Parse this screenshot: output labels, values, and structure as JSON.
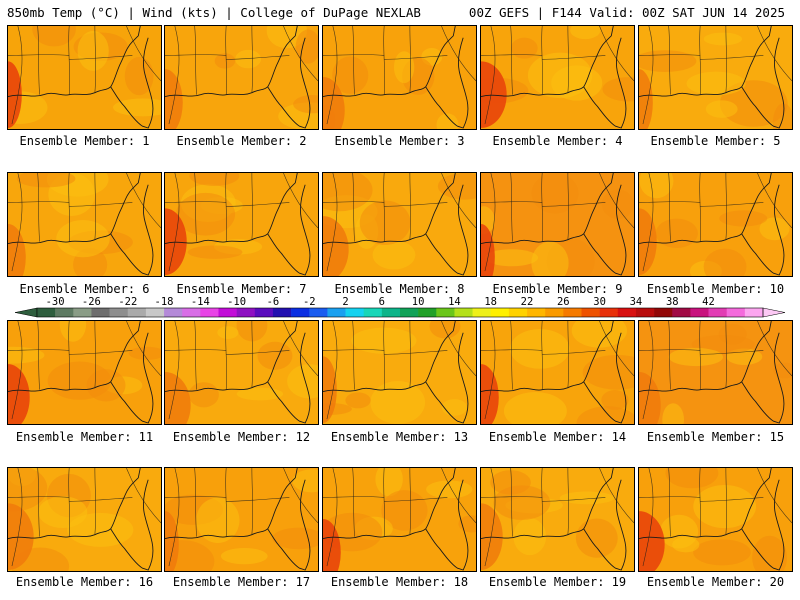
{
  "header": {
    "left_title": "850mb Temp (°C) | Wind (kts) | College of DuPage NEXLAB",
    "right_title": "00Z GEFS | F144 Valid: 00Z SAT JUN 14 2025"
  },
  "panel_label_prefix": "Ensemble Member: ",
  "members": [
    {
      "label": "Ensemble Member: 1",
      "base": "#f7a40a",
      "hot": "#e8400b"
    },
    {
      "label": "Ensemble Member: 2",
      "base": "#f8a50c",
      "hot": "#f07a0c"
    },
    {
      "label": "Ensemble Member: 3",
      "base": "#f8a20b",
      "hot": "#f07a0c"
    },
    {
      "label": "Ensemble Member: 4",
      "base": "#f8a40b",
      "hot": "#e8400b"
    },
    {
      "label": "Ensemble Member: 5",
      "base": "#f9ab0d",
      "hot": "#f07a0c"
    },
    {
      "label": "Ensemble Member: 6",
      "base": "#f8a60c",
      "hot": "#f07a0c"
    },
    {
      "label": "Ensemble Member: 7",
      "base": "#f8a50c",
      "hot": "#e8400b"
    },
    {
      "label": "Ensemble Member: 8",
      "base": "#f9a90d",
      "hot": "#f07a0c"
    },
    {
      "label": "Ensemble Member: 9",
      "base": "#f59210",
      "hot": "#e8400b"
    },
    {
      "label": "Ensemble Member: 10",
      "base": "#f8a00c",
      "hot": "#f07a0c"
    },
    {
      "label": "Ensemble Member: 11",
      "base": "#f8a00b",
      "hot": "#e8400b"
    },
    {
      "label": "Ensemble Member: 12",
      "base": "#f9aa0d",
      "hot": "#f07a0c"
    },
    {
      "label": "Ensemble Member: 13",
      "base": "#f9ab0d",
      "hot": "#f07a0c"
    },
    {
      "label": "Ensemble Member: 14",
      "base": "#f8a40b",
      "hot": "#e8400b"
    },
    {
      "label": "Ensemble Member: 15",
      "base": "#f59310",
      "hot": "#f07a0c"
    },
    {
      "label": "Ensemble Member: 16",
      "base": "#f9aa0d",
      "hot": "#f07a0c"
    },
    {
      "label": "Ensemble Member: 17",
      "base": "#f8a00b",
      "hot": "#f07a0c"
    },
    {
      "label": "Ensemble Member: 18",
      "base": "#f8a20b",
      "hot": "#e8400b"
    },
    {
      "label": "Ensemble Member: 19",
      "base": "#f9ab0d",
      "hot": "#f07a0c"
    },
    {
      "label": "Ensemble Member: 20",
      "base": "#f8a00b",
      "hot": "#e8400b"
    }
  ],
  "colorbar": {
    "tick_labels": [
      "-30",
      "-26",
      "-22",
      "-18",
      "-14",
      "-10",
      "-6",
      "-2",
      "2",
      "6",
      "10",
      "14",
      "18",
      "22",
      "26",
      "30",
      "34",
      "38",
      "42"
    ],
    "colors": [
      "#2e5e3e",
      "#5e7a62",
      "#8a9c86",
      "#6e6e6e",
      "#8e8e8e",
      "#aaaaaa",
      "#c8c8c8",
      "#b48ad8",
      "#d86ee6",
      "#e844e6",
      "#c20cd8",
      "#8e10c2",
      "#5a0cbe",
      "#2210b0",
      "#0a2ee2",
      "#1a5cf0",
      "#1aa0f0",
      "#14d2f0",
      "#18d6b8",
      "#0cb48a",
      "#10a258",
      "#20a028",
      "#6ac61a",
      "#b4e01a",
      "#eef01a",
      "#fff000",
      "#ffd200",
      "#ffb600",
      "#f99a00",
      "#f57a00",
      "#ee5200",
      "#e8300a",
      "#d81010",
      "#b80c0c",
      "#920808",
      "#a00a44",
      "#c8127e",
      "#e23cb4",
      "#f46adc",
      "#fca6f0"
    ],
    "left_arrow_color": "#2e5e3e",
    "right_arrow_color": "#fcc8f4"
  },
  "map_colors": {
    "coast": "#1a1a1a",
    "warm_patch": "#fbbf10",
    "mid_patch": "#f28d0c"
  }
}
